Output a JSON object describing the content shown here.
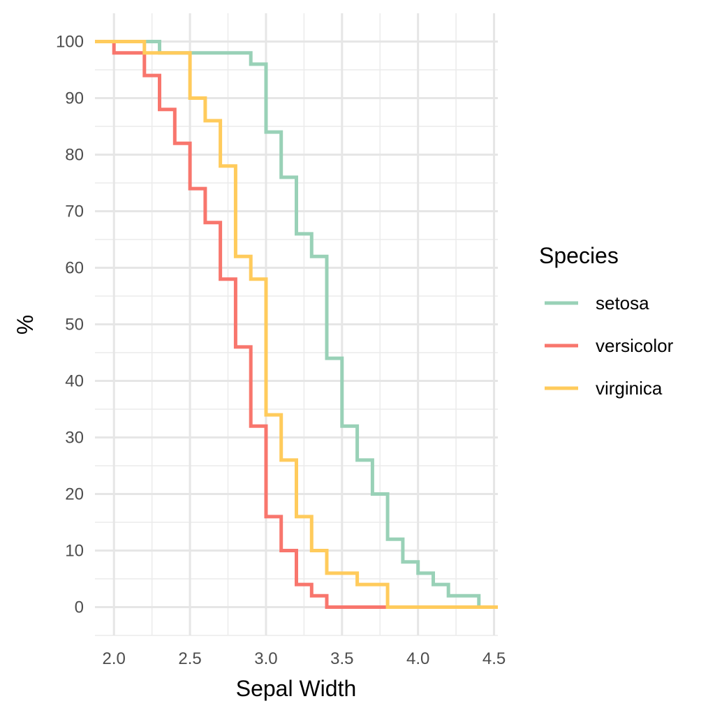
{
  "chart_data": {
    "type": "line",
    "step": true,
    "title": "",
    "xlabel": "Sepal Width",
    "ylabel": "%",
    "xlim": [
      1.875,
      4.525
    ],
    "ylim": [
      -5,
      105
    ],
    "x_ticks": [
      2.0,
      2.5,
      3.0,
      3.5,
      4.0,
      4.5
    ],
    "x_tick_labels": [
      "2.0",
      "2.5",
      "3.0",
      "3.5",
      "4.0",
      "4.5"
    ],
    "y_ticks": [
      0,
      10,
      20,
      30,
      40,
      50,
      60,
      70,
      80,
      90,
      100
    ],
    "y_tick_labels": [
      "0",
      "10",
      "20",
      "30",
      "40",
      "50",
      "60",
      "70",
      "80",
      "90",
      "100"
    ],
    "grid": true,
    "legend": {
      "title": "Species",
      "position": "right"
    },
    "series": [
      {
        "name": "setosa",
        "color": "#99d1b7",
        "x": [
          1.875,
          2.3,
          2.3,
          2.9,
          2.9,
          3.0,
          3.0,
          3.1,
          3.1,
          3.2,
          3.2,
          3.3,
          3.3,
          3.4,
          3.4,
          3.5,
          3.5,
          3.6,
          3.6,
          3.7,
          3.7,
          3.8,
          3.8,
          3.9,
          3.9,
          4.0,
          4.0,
          4.1,
          4.1,
          4.2,
          4.2,
          4.4,
          4.4,
          4.525
        ],
        "y": [
          100,
          100,
          98,
          98,
          96,
          96,
          84,
          84,
          76,
          76,
          66,
          66,
          62,
          62,
          44,
          44,
          32,
          32,
          26,
          26,
          20,
          20,
          12,
          12,
          8,
          8,
          6,
          6,
          4,
          4,
          2,
          2,
          0,
          0
        ]
      },
      {
        "name": "versicolor",
        "color": "#f8766d",
        "x": [
          1.875,
          2.0,
          2.0,
          2.2,
          2.2,
          2.3,
          2.3,
          2.4,
          2.4,
          2.5,
          2.5,
          2.6,
          2.6,
          2.7,
          2.7,
          2.8,
          2.8,
          2.9,
          2.9,
          3.0,
          3.0,
          3.1,
          3.1,
          3.2,
          3.2,
          3.3,
          3.3,
          3.4,
          3.4,
          3.8
        ],
        "y": [
          100,
          100,
          98,
          98,
          94,
          94,
          88,
          88,
          82,
          82,
          74,
          74,
          68,
          68,
          58,
          58,
          46,
          46,
          32,
          32,
          16,
          16,
          10,
          10,
          4,
          4,
          2,
          2,
          0,
          0
        ]
      },
      {
        "name": "virginica",
        "color": "#ffcb5c",
        "x": [
          1.875,
          2.2,
          2.2,
          2.5,
          2.5,
          2.6,
          2.6,
          2.7,
          2.7,
          2.8,
          2.8,
          2.9,
          2.9,
          3.0,
          3.0,
          3.1,
          3.1,
          3.2,
          3.2,
          3.3,
          3.3,
          3.4,
          3.4,
          3.6,
          3.6,
          3.8,
          3.8,
          4.525
        ],
        "y": [
          100,
          100,
          98,
          98,
          90,
          90,
          86,
          86,
          78,
          78,
          62,
          62,
          58,
          58,
          34,
          34,
          26,
          26,
          16,
          16,
          10,
          10,
          6,
          6,
          4,
          4,
          0,
          0
        ]
      }
    ]
  }
}
